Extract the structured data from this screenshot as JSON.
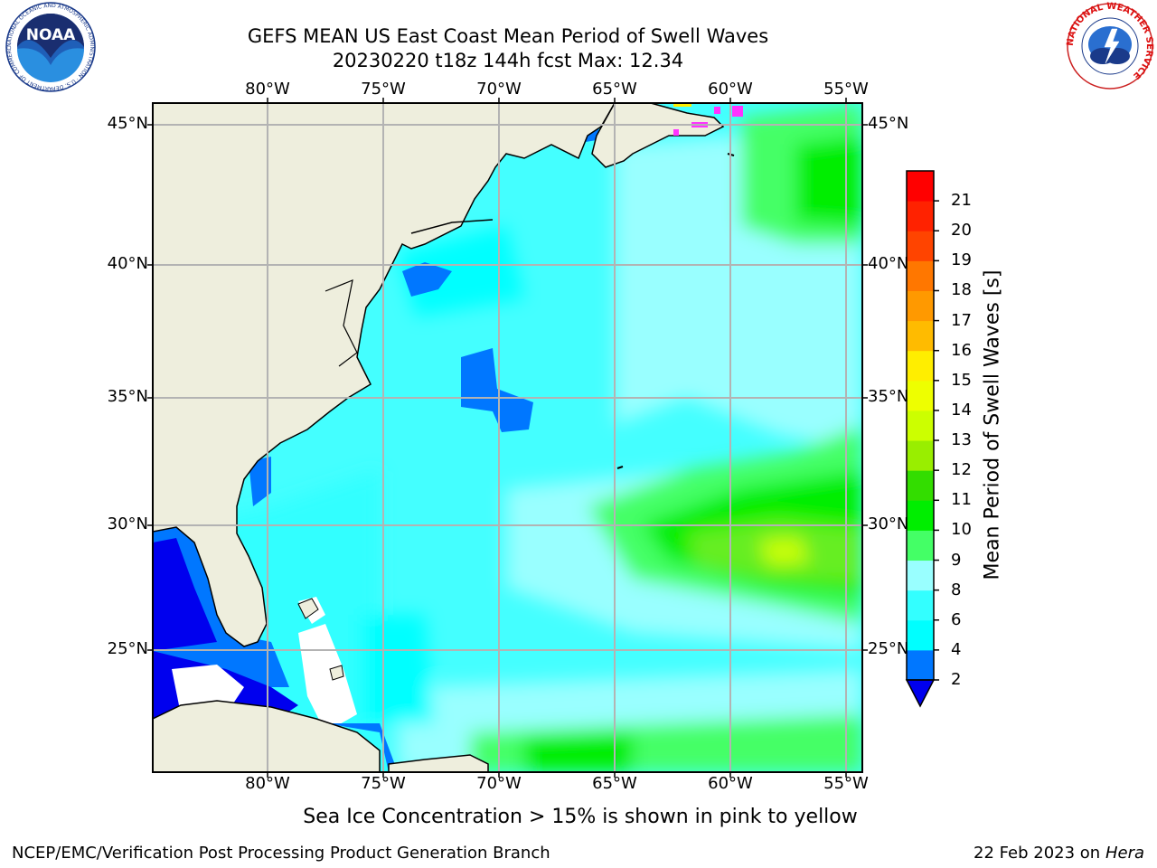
{
  "header": {
    "title_line1": "GEFS MEAN US East Coast Mean Period of Swell Waves",
    "title_line2": "20230220 t18z 144h fcst   Max: 12.34"
  },
  "map": {
    "lon_labels": [
      "80°W",
      "75°W",
      "70°W",
      "65°W",
      "60°W",
      "55°W"
    ],
    "lat_labels": [
      "45°N",
      "40°N",
      "35°N",
      "30°N",
      "25°N"
    ],
    "colors": {
      "land": "#eeeedd",
      "coastline": "#000000",
      "grid": "#b3b3b3",
      "sea_ice": "#ff33ff",
      "missing": "#ffffff"
    }
  },
  "colorbar": {
    "title": "Mean Period of Swell Waves [s]",
    "ticks": [
      "2",
      "4",
      "6",
      "8",
      "9",
      "10",
      "11",
      "12",
      "13",
      "14",
      "15",
      "16",
      "17",
      "18",
      "19",
      "20",
      "21"
    ],
    "under_color": "#0000ee",
    "colors": [
      "#0077ff",
      "#00ffff",
      "#33ffff",
      "#99ffff",
      "#44ff66",
      "#00ee00",
      "#33dd00",
      "#99ee00",
      "#ccff00",
      "#eeff00",
      "#ffee00",
      "#ffbb00",
      "#ff9900",
      "#ff7700",
      "#ff4400",
      "#ff2200",
      "#ff0000"
    ]
  },
  "subtitle": "Sea Ice Concentration > 15% is shown in pink to yellow",
  "footer": {
    "left": "NCEP/EMC/Verification Post Processing Product Generation Branch",
    "right_date": "22 Feb 2023 on",
    "right_machine": "Hera"
  },
  "logos": {
    "noaa": "NOAA",
    "noaa_ring": "NATIONAL OCEANIC AND ATMOSPHERIC ADMINISTRATION · U.S. DEPARTMENT OF COMMERCE",
    "nws_ring": "NATIONAL WEATHER SERVICE"
  }
}
